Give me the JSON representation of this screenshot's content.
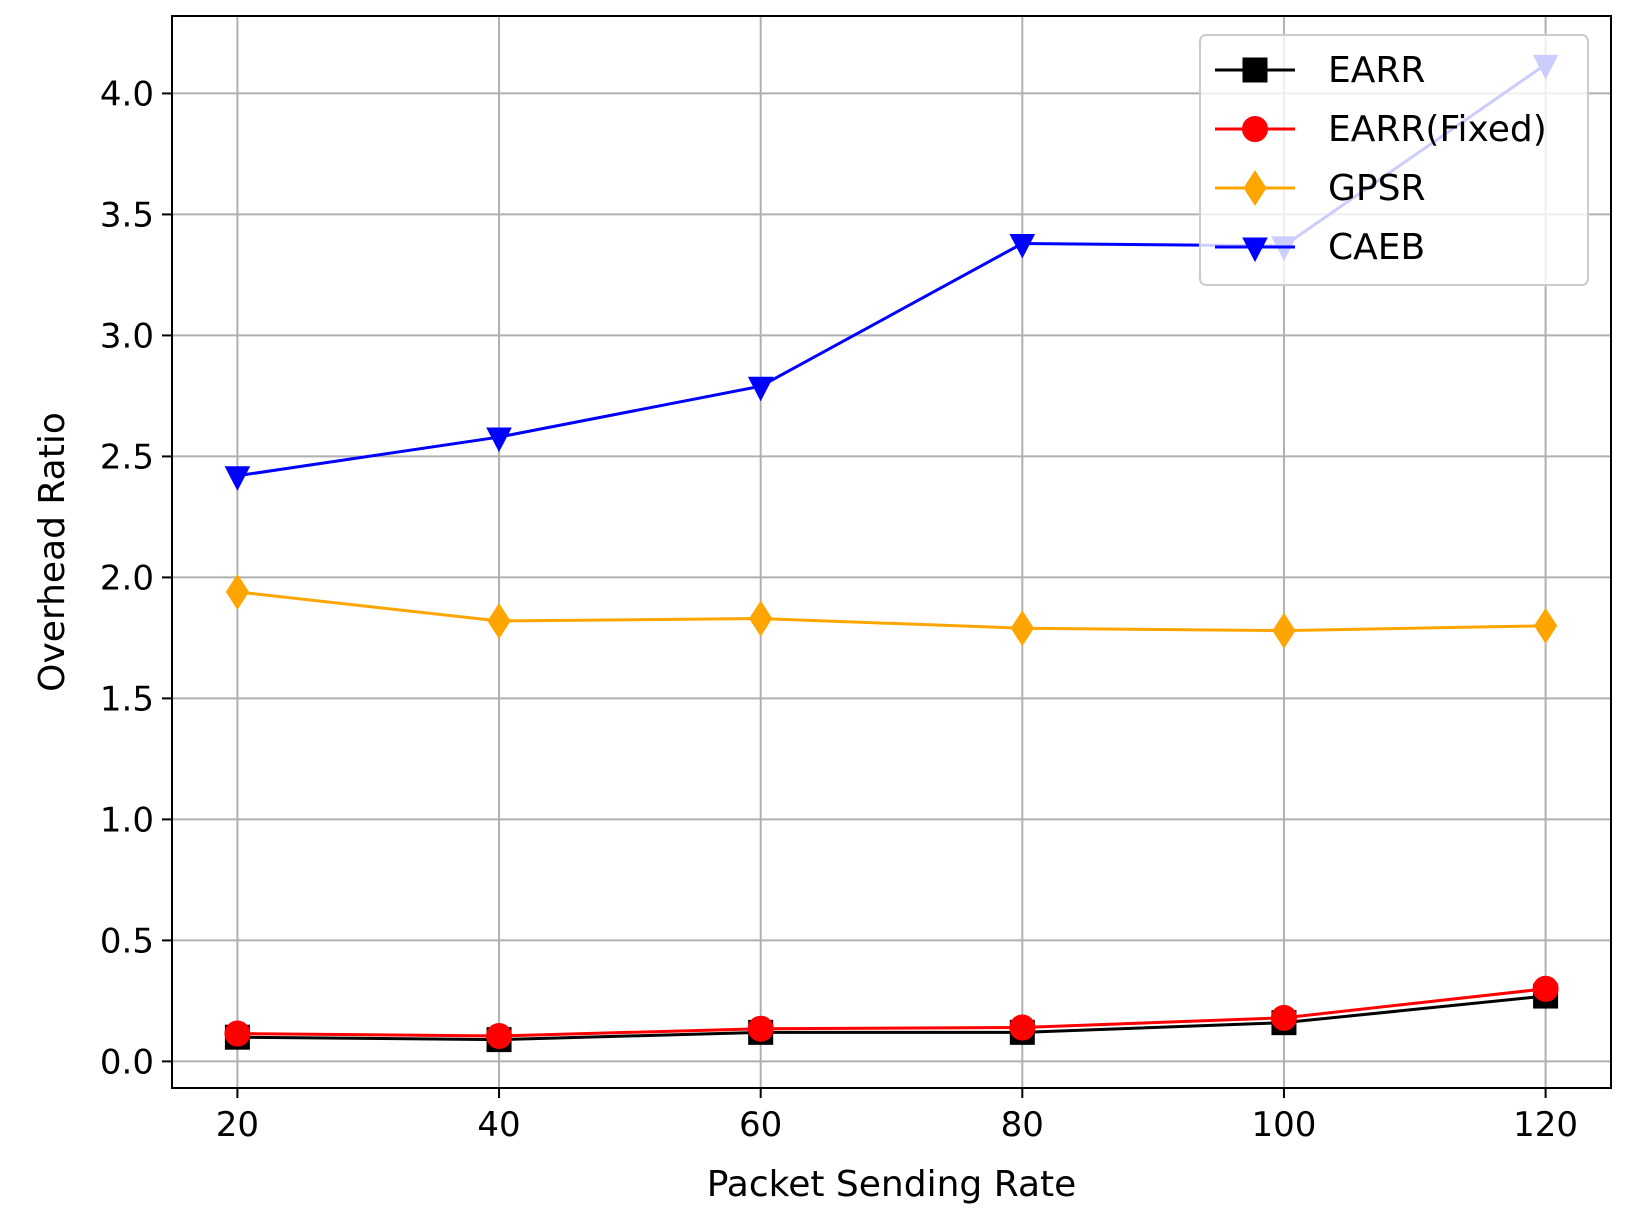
{
  "chart_data": {
    "type": "line",
    "title": "",
    "xlabel": "Packet Sending Rate",
    "ylabel": "Overhead Ratio",
    "x": [
      20,
      40,
      60,
      80,
      100,
      120
    ],
    "xlim": [
      15,
      125
    ],
    "ylim": [
      -0.11,
      4.32
    ],
    "xticks": [
      20,
      40,
      60,
      80,
      100,
      120
    ],
    "yticks": [
      0.0,
      0.5,
      1.0,
      1.5,
      2.0,
      2.5,
      3.0,
      3.5,
      4.0
    ],
    "xtick_labels": [
      "20",
      "40",
      "60",
      "80",
      "100",
      "120"
    ],
    "ytick_labels": [
      "0.0",
      "0.5",
      "1.0",
      "1.5",
      "2.0",
      "2.5",
      "3.0",
      "3.5",
      "4.0"
    ],
    "grid": true,
    "legend_position": "top-right",
    "series": [
      {
        "name": "EARR",
        "color": "#000000",
        "marker": "square",
        "values": [
          0.1,
          0.09,
          0.12,
          0.12,
          0.16,
          0.27
        ]
      },
      {
        "name": "EARR(Fixed)",
        "color": "#ff0000",
        "marker": "circle",
        "values": [
          0.115,
          0.105,
          0.135,
          0.14,
          0.18,
          0.3
        ]
      },
      {
        "name": "GPSR",
        "color": "#ffa500",
        "marker": "thin-diamond",
        "values": [
          1.94,
          1.82,
          1.83,
          1.79,
          1.78,
          1.8
        ]
      },
      {
        "name": "CAEB",
        "color": "#0000ff",
        "marker": "triangle-down",
        "values": [
          2.42,
          2.58,
          2.79,
          3.38,
          3.37,
          4.12
        ]
      }
    ]
  }
}
